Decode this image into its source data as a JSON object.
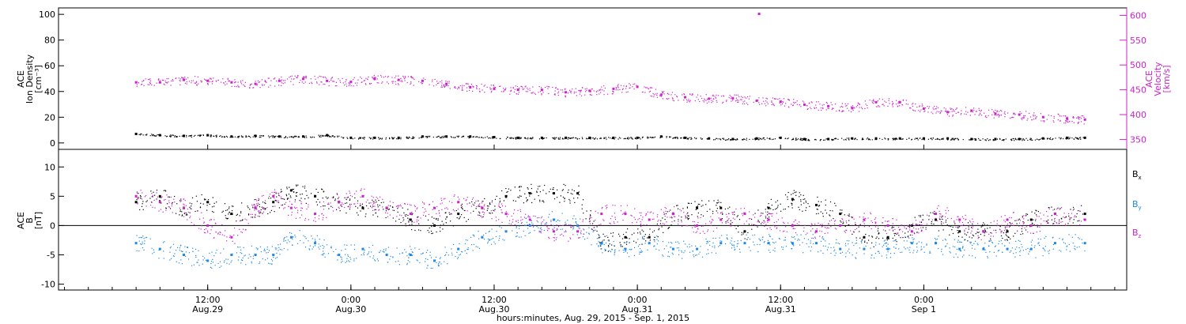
{
  "chart_data": [
    {
      "type": "scatter",
      "panel": "top",
      "ylabel": [
        "ACE",
        "Ion Density",
        "[cm⁻³]"
      ],
      "ylim": [
        -5,
        105
      ],
      "yticks": [
        0,
        20,
        40,
        60,
        80,
        100
      ],
      "y2label": [
        "ACE",
        "Velocity",
        "[km/s]"
      ],
      "y2lim": [
        330,
        615
      ],
      "y2ticks": [
        350,
        400,
        450,
        500,
        550,
        600
      ],
      "series": [
        {
          "axis": "y",
          "color": "#000000",
          "x": [
            0,
            2,
            4,
            6,
            8,
            10,
            12,
            14,
            16,
            18,
            20,
            22,
            24,
            26,
            28,
            30,
            32,
            34,
            36,
            38,
            40,
            42,
            44,
            46,
            48,
            50,
            52,
            54,
            56,
            58,
            60,
            62,
            64,
            66,
            68,
            70,
            72,
            74,
            76,
            78,
            79.5
          ],
          "y": [
            7,
            6,
            5.5,
            6,
            5,
            5.5,
            5,
            5,
            6,
            4,
            4,
            4,
            5,
            5,
            5,
            4.5,
            4,
            4,
            4,
            4,
            4,
            4,
            5,
            4,
            3.5,
            3,
            3.5,
            4,
            3,
            3,
            3.5,
            3.5,
            3.5,
            3.5,
            3.5,
            3,
            3,
            3,
            3.5,
            4,
            4
          ]
        },
        {
          "axis": "y2",
          "color": "#cc22cc",
          "x": [
            0,
            2,
            4,
            6,
            8,
            10,
            12,
            14,
            16,
            18,
            20,
            22,
            24,
            26,
            28,
            30,
            32,
            34,
            36,
            38,
            40,
            42,
            44,
            46,
            48,
            50,
            52,
            54,
            56,
            58,
            60,
            62,
            64,
            66,
            68,
            70,
            72,
            74,
            76,
            78,
            79.5
          ],
          "y": [
            465,
            465,
            470,
            468,
            465,
            462,
            468,
            472,
            468,
            466,
            472,
            470,
            468,
            462,
            455,
            452,
            450,
            450,
            445,
            448,
            452,
            456,
            440,
            435,
            432,
            433,
            428,
            426,
            420,
            417,
            413,
            425,
            425,
            412,
            405,
            408,
            402,
            400,
            395,
            392,
            390
          ]
        }
      ],
      "annotations": [
        {
          "axis": "y2",
          "x": 52.2,
          "y": 603,
          "color": "#cc22cc"
        }
      ]
    },
    {
      "type": "scatter",
      "panel": "bottom",
      "ylabel": [
        "ACE",
        "B",
        "[nT]"
      ],
      "ylim": [
        -11,
        13
      ],
      "yticks": [
        -10,
        -5,
        0,
        5,
        10
      ],
      "legend": [
        "Bx",
        "By",
        "Bz"
      ],
      "series": [
        {
          "name": "Bx",
          "color": "#000000",
          "x": [
            0,
            2,
            4,
            6,
            8,
            10,
            11.5,
            13,
            15,
            17,
            19,
            21,
            23,
            25,
            27,
            29,
            31,
            33,
            35,
            37,
            39,
            41,
            43,
            45,
            47,
            49,
            51,
            53,
            55,
            57,
            59,
            61,
            63,
            65,
            67,
            69,
            71,
            73,
            75,
            77,
            79.5
          ],
          "y": [
            4,
            5,
            3,
            4,
            2,
            3,
            4,
            6,
            5,
            4,
            3,
            3,
            1,
            0,
            2,
            3,
            5,
            5.5,
            5.5,
            5.5,
            -3,
            -2,
            -2,
            2,
            3,
            3,
            -1,
            3,
            4.5,
            3.5,
            2,
            -2,
            -2,
            0,
            1,
            -1,
            -1,
            -1,
            1,
            2,
            2
          ]
        },
        {
          "name": "By",
          "color": "#1e88e5",
          "x": [
            0,
            2,
            4,
            6,
            8,
            10,
            11.5,
            13,
            15,
            17,
            19,
            21,
            23,
            25,
            27,
            29,
            31,
            33,
            35,
            37,
            39,
            41,
            43,
            45,
            47,
            49,
            51,
            53,
            55,
            57,
            59,
            61,
            63,
            65,
            67,
            69,
            71,
            73,
            75,
            77,
            79.5
          ],
          "y": [
            -3,
            -4,
            -5,
            -6,
            -5,
            -5,
            -5,
            -2,
            -3,
            -5,
            -4,
            -5,
            -5,
            -6,
            -4,
            -2,
            -1,
            0,
            1,
            0,
            -3,
            -4,
            -3,
            -4,
            -4,
            -3,
            -3,
            -3,
            -3,
            -3,
            -4,
            -4,
            -4,
            -3,
            -3,
            -4,
            -4,
            -4,
            -4,
            -3,
            -3
          ]
        },
        {
          "name": "Bz",
          "color": "#cc22cc",
          "x": [
            0,
            2,
            4,
            6,
            8,
            10,
            11.5,
            13,
            15,
            17,
            19,
            21,
            23,
            25,
            27,
            29,
            31,
            33,
            35,
            37,
            39,
            41,
            43,
            45,
            47,
            49,
            51,
            53,
            55,
            57,
            59,
            61,
            63,
            65,
            67,
            69,
            71,
            73,
            75,
            77,
            79.5
          ],
          "y": [
            5,
            4,
            3,
            0,
            -2,
            3,
            5,
            3,
            2,
            4,
            5,
            3,
            2,
            3,
            4,
            3,
            2,
            1,
            -1,
            -1,
            2,
            2,
            1,
            2,
            0,
            1,
            2,
            1,
            0,
            -1,
            0,
            1,
            0,
            -1,
            2,
            1,
            -1,
            1,
            0,
            2,
            1
          ]
        }
      ]
    }
  ],
  "xaxis": {
    "xlim": [
      -6.5,
      83
    ],
    "ticks": [
      {
        "x": 6,
        "time": "12:00",
        "date": "Aug.29"
      },
      {
        "x": 18,
        "time": "0:00",
        "date": "Aug.30"
      },
      {
        "x": 30,
        "time": "12:00",
        "date": "Aug.30"
      },
      {
        "x": 42,
        "time": "0:00",
        "date": "Aug.31"
      },
      {
        "x": 54,
        "time": "12:00",
        "date": "Aug.31"
      },
      {
        "x": 66,
        "time": "0:00",
        "date": "Sep 1"
      }
    ],
    "label": "hours:minutes, Aug. 29, 2015 - Sep.  1, 2015"
  },
  "colors": {
    "density": "#000000",
    "velocity": "#cc22cc",
    "bx": "#000000",
    "by": "#1e88e5",
    "bz": "#cc22cc"
  }
}
